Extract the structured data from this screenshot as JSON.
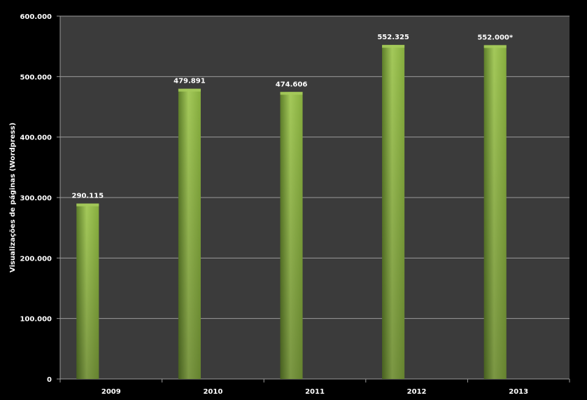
{
  "chart_data": {
    "type": "bar",
    "categories": [
      "2009",
      "2010",
      "2011",
      "2012",
      "2013"
    ],
    "values": [
      290115,
      479891,
      474606,
      552325,
      552000
    ],
    "data_labels": [
      "290.115",
      "479.891",
      "474.606",
      "552.325",
      "552.000*"
    ],
    "title": "",
    "xlabel": "",
    "ylabel": "Visualizações de páginas (Wordpress)",
    "ylim": [
      0,
      600000
    ],
    "yticks": [
      0,
      100000,
      200000,
      300000,
      400000,
      500000,
      600000
    ],
    "ytick_labels": [
      "0",
      "100.000",
      "200.000",
      "300.000",
      "400.000",
      "500.000",
      "600.000"
    ],
    "grid": true,
    "legend": "none"
  },
  "colors": {
    "page_background": "#000000",
    "plot_background": "#3b3b3b",
    "gridline": "#9a9a9a",
    "axis": "#9a9a9a",
    "bar_light": "#a4c95a",
    "bar_mid": "#86ad3e",
    "bar_dark": "#5e7f2a",
    "text": "#ffffff"
  }
}
